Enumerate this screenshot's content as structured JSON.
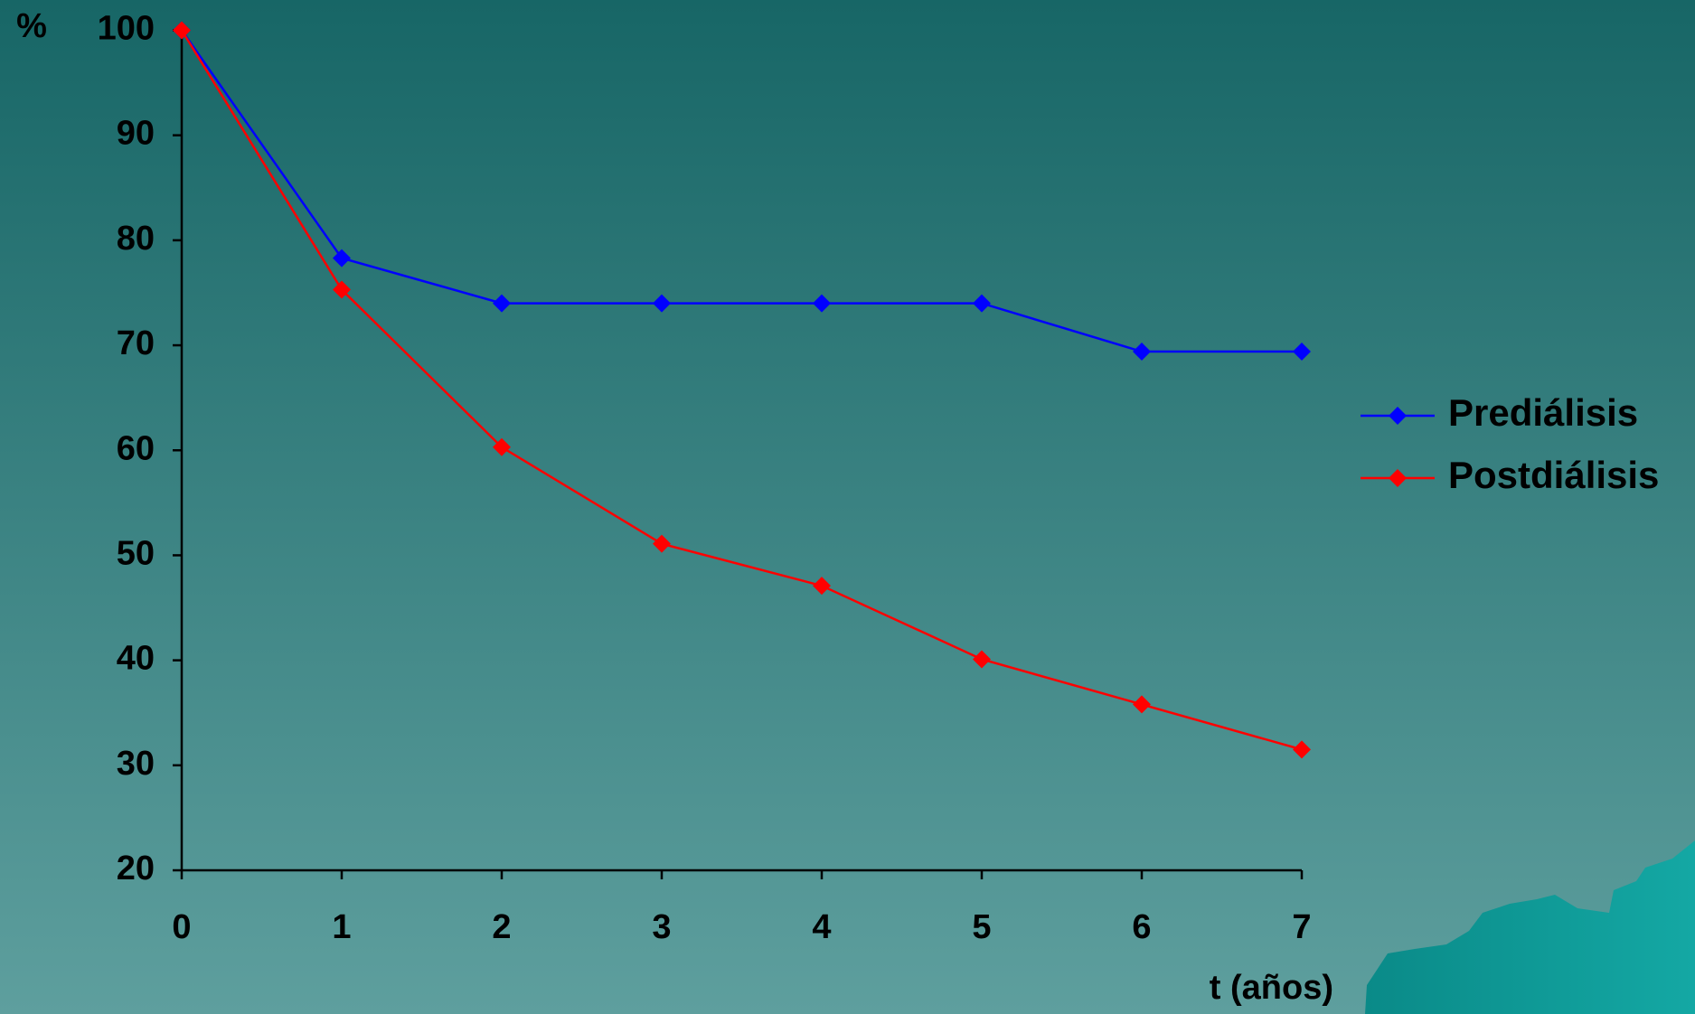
{
  "chart_data": {
    "type": "line",
    "y_label": "%",
    "x_label": "t (años)",
    "x": [
      0,
      1,
      2,
      3,
      4,
      5,
      6,
      7
    ],
    "series": [
      {
        "name": "Prediálisis",
        "color": "#0000ff",
        "values": [
          100,
          78.3,
          74,
          74,
          74,
          74,
          69.4,
          69.4
        ]
      },
      {
        "name": "Postdiálisis",
        "color": "#ff0000",
        "values": [
          100,
          75.3,
          60.3,
          51.1,
          47.1,
          40.1,
          35.8,
          31.5
        ]
      }
    ],
    "xlim": [
      0,
      7
    ],
    "xticks": [
      0,
      1,
      2,
      3,
      4,
      5,
      6,
      7
    ],
    "ylim": [
      20,
      100
    ],
    "yticks": [
      20,
      30,
      40,
      50,
      60,
      70,
      80,
      90,
      100
    ],
    "legend": "right"
  }
}
